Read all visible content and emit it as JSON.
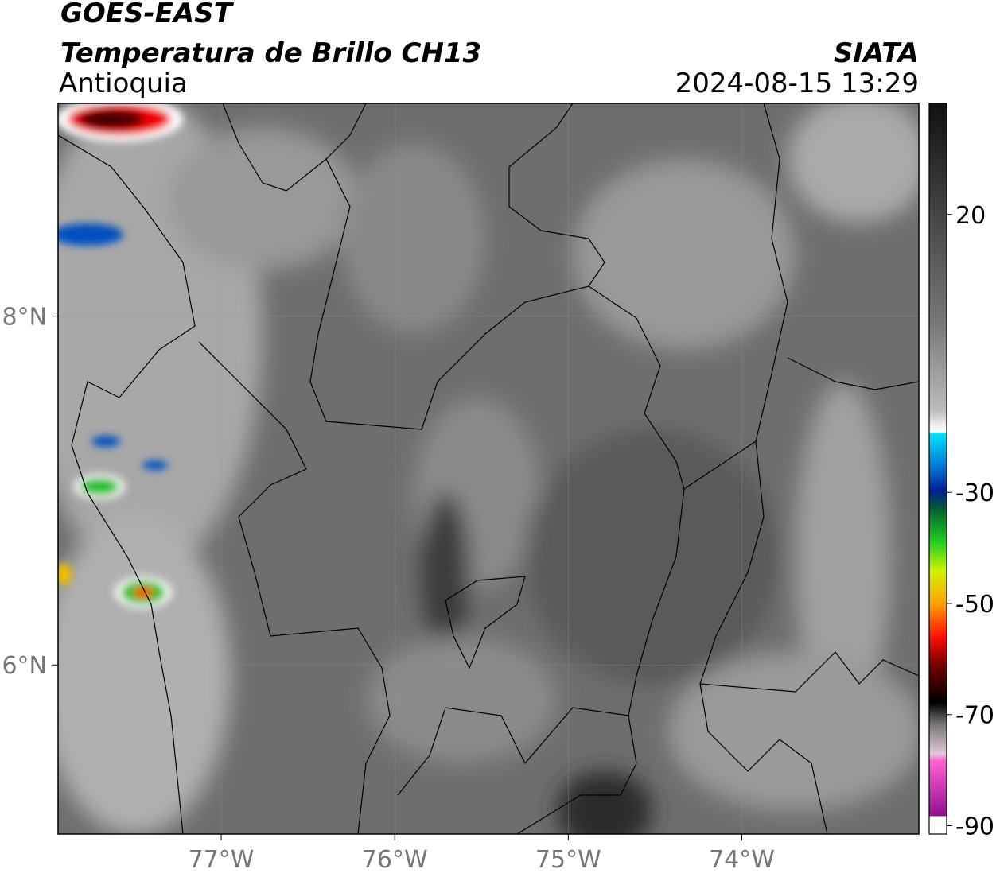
{
  "header": {
    "title": "GOES-EAST",
    "subtitle": "Temperatura de Brillo CH13",
    "region": "Antioquia",
    "source": "SIATA",
    "datetime": "2024-08-15 13:29"
  },
  "map": {
    "xlim": [
      -77.94,
      -72.98
    ],
    "ylim": [
      5.03,
      9.22
    ],
    "xticks": [
      {
        "value": -77,
        "label": "77°W"
      },
      {
        "value": -76,
        "label": "76°W"
      },
      {
        "value": -75,
        "label": "75°W"
      },
      {
        "value": -74,
        "label": "74°W"
      }
    ],
    "yticks": [
      {
        "value": 8,
        "label": "8°N"
      },
      {
        "value": 6,
        "label": "6°N"
      }
    ]
  },
  "colorbar": {
    "lim": [
      -91.5,
      40
    ],
    "ticks": [
      20,
      -30,
      -50,
      -70,
      -90
    ]
  }
}
